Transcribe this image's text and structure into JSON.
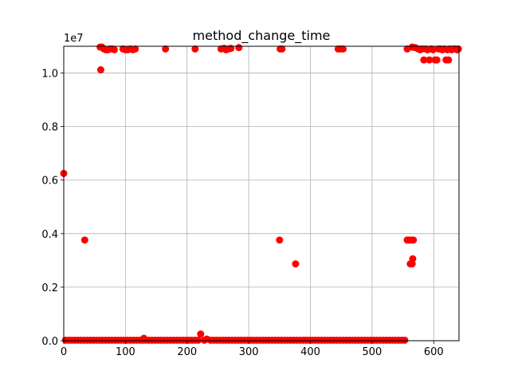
{
  "chart_data": {
    "type": "scatter",
    "title": "method_change_time",
    "xlabel": "",
    "ylabel": "",
    "y_offset_label": "1e7",
    "xlim": [
      0,
      641
    ],
    "ylim": [
      0,
      11000000.0
    ],
    "xticks": [
      0,
      100,
      200,
      300,
      400,
      500,
      600
    ],
    "xtick_labels": [
      "0",
      "100",
      "200",
      "300",
      "400",
      "500",
      "600"
    ],
    "yticks": [
      0,
      2000000,
      4000000,
      6000000,
      8000000,
      10000000
    ],
    "ytick_labels": [
      "0.0",
      "0.2",
      "0.4",
      "0.6",
      "0.8",
      "1.0"
    ],
    "grid": true,
    "marker_color": "#ff0000",
    "series": [
      {
        "points": [
          [
            0,
            6250000
          ],
          [
            34,
            3760000
          ],
          [
            60,
            10120000
          ],
          [
            130,
            90000
          ],
          [
            222,
            250000
          ],
          [
            232,
            60000
          ],
          [
            350,
            3760000
          ],
          [
            376,
            2870000
          ],
          [
            557,
            3760000
          ],
          [
            560,
            3760000
          ],
          [
            562,
            2870000
          ],
          [
            564,
            3760000
          ],
          [
            565,
            2870000
          ],
          [
            566,
            3060000
          ],
          [
            567,
            3760000
          ],
          [
            59,
            10970000
          ],
          [
            62,
            10970000
          ],
          [
            65,
            10900000
          ],
          [
            68,
            10870000
          ],
          [
            72,
            10870000
          ],
          [
            75,
            10900000
          ],
          [
            79,
            10900000
          ],
          [
            82,
            10870000
          ],
          [
            96,
            10900000
          ],
          [
            100,
            10870000
          ],
          [
            104,
            10870000
          ],
          [
            108,
            10900000
          ],
          [
            112,
            10870000
          ],
          [
            116,
            10900000
          ],
          [
            165,
            10900000
          ],
          [
            213,
            10900000
          ],
          [
            255,
            10900000
          ],
          [
            260,
            10920000
          ],
          [
            263,
            10870000
          ],
          [
            267,
            10900000
          ],
          [
            271,
            10920000
          ],
          [
            284,
            10950000
          ],
          [
            351,
            10900000
          ],
          [
            354,
            10900000
          ],
          [
            445,
            10900000
          ],
          [
            449,
            10900000
          ],
          [
            453,
            10900000
          ],
          [
            557,
            10900000
          ],
          [
            565,
            10970000
          ],
          [
            570,
            10950000
          ],
          [
            575,
            10900000
          ],
          [
            578,
            10870000
          ],
          [
            581,
            10900000
          ],
          [
            584,
            10490000
          ],
          [
            587,
            10900000
          ],
          [
            590,
            10870000
          ],
          [
            593,
            10490000
          ],
          [
            596,
            10900000
          ],
          [
            599,
            10870000
          ],
          [
            602,
            10490000
          ],
          [
            605,
            10490000
          ],
          [
            608,
            10900000
          ],
          [
            611,
            10900000
          ],
          [
            614,
            10870000
          ],
          [
            617,
            10900000
          ],
          [
            620,
            10490000
          ],
          [
            622,
            10870000
          ],
          [
            624,
            10490000
          ],
          [
            626,
            10900000
          ],
          [
            629,
            10870000
          ],
          [
            632,
            10900000
          ],
          [
            635,
            10900000
          ],
          [
            638,
            10870000
          ],
          [
            640,
            10900000
          ],
          [
            3,
            20000
          ],
          [
            8,
            20000
          ],
          [
            13,
            20000
          ],
          [
            18,
            20000
          ],
          [
            23,
            20000
          ],
          [
            28,
            20000
          ],
          [
            33,
            20000
          ],
          [
            38,
            20000
          ],
          [
            43,
            20000
          ],
          [
            48,
            20000
          ],
          [
            53,
            20000
          ],
          [
            58,
            20000
          ],
          [
            63,
            20000
          ],
          [
            68,
            20000
          ],
          [
            73,
            20000
          ],
          [
            78,
            20000
          ],
          [
            83,
            20000
          ],
          [
            88,
            20000
          ],
          [
            93,
            20000
          ],
          [
            98,
            20000
          ],
          [
            103,
            20000
          ],
          [
            108,
            20000
          ],
          [
            113,
            20000
          ],
          [
            118,
            20000
          ],
          [
            123,
            20000
          ],
          [
            128,
            20000
          ],
          [
            133,
            20000
          ],
          [
            138,
            20000
          ],
          [
            143,
            20000
          ],
          [
            148,
            20000
          ],
          [
            153,
            20000
          ],
          [
            158,
            20000
          ],
          [
            163,
            20000
          ],
          [
            168,
            20000
          ],
          [
            173,
            20000
          ],
          [
            178,
            20000
          ],
          [
            183,
            20000
          ],
          [
            188,
            20000
          ],
          [
            193,
            20000
          ],
          [
            198,
            20000
          ],
          [
            203,
            20000
          ],
          [
            208,
            20000
          ],
          [
            213,
            20000
          ],
          [
            218,
            20000
          ],
          [
            228,
            20000
          ],
          [
            238,
            20000
          ],
          [
            243,
            20000
          ],
          [
            248,
            20000
          ],
          [
            253,
            20000
          ],
          [
            258,
            20000
          ],
          [
            263,
            20000
          ],
          [
            268,
            20000
          ],
          [
            273,
            20000
          ],
          [
            278,
            20000
          ],
          [
            283,
            20000
          ],
          [
            288,
            20000
          ],
          [
            293,
            20000
          ],
          [
            298,
            20000
          ],
          [
            303,
            20000
          ],
          [
            308,
            20000
          ],
          [
            313,
            20000
          ],
          [
            318,
            20000
          ],
          [
            323,
            20000
          ],
          [
            328,
            20000
          ],
          [
            333,
            20000
          ],
          [
            338,
            20000
          ],
          [
            343,
            20000
          ],
          [
            348,
            20000
          ],
          [
            353,
            20000
          ],
          [
            358,
            20000
          ],
          [
            363,
            20000
          ],
          [
            368,
            20000
          ],
          [
            373,
            20000
          ],
          [
            378,
            20000
          ],
          [
            383,
            20000
          ],
          [
            388,
            20000
          ],
          [
            393,
            20000
          ],
          [
            398,
            20000
          ],
          [
            403,
            20000
          ],
          [
            408,
            20000
          ],
          [
            413,
            20000
          ],
          [
            418,
            20000
          ],
          [
            423,
            20000
          ],
          [
            428,
            20000
          ],
          [
            433,
            20000
          ],
          [
            438,
            20000
          ],
          [
            443,
            20000
          ],
          [
            448,
            20000
          ],
          [
            453,
            20000
          ],
          [
            458,
            20000
          ],
          [
            463,
            20000
          ],
          [
            468,
            20000
          ],
          [
            473,
            20000
          ],
          [
            478,
            20000
          ],
          [
            483,
            20000
          ],
          [
            488,
            20000
          ],
          [
            493,
            20000
          ],
          [
            498,
            20000
          ],
          [
            503,
            20000
          ],
          [
            508,
            20000
          ],
          [
            513,
            20000
          ],
          [
            518,
            20000
          ],
          [
            523,
            20000
          ],
          [
            528,
            20000
          ],
          [
            533,
            20000
          ],
          [
            538,
            20000
          ],
          [
            543,
            20000
          ],
          [
            548,
            20000
          ],
          [
            553,
            20000
          ]
        ]
      }
    ]
  }
}
